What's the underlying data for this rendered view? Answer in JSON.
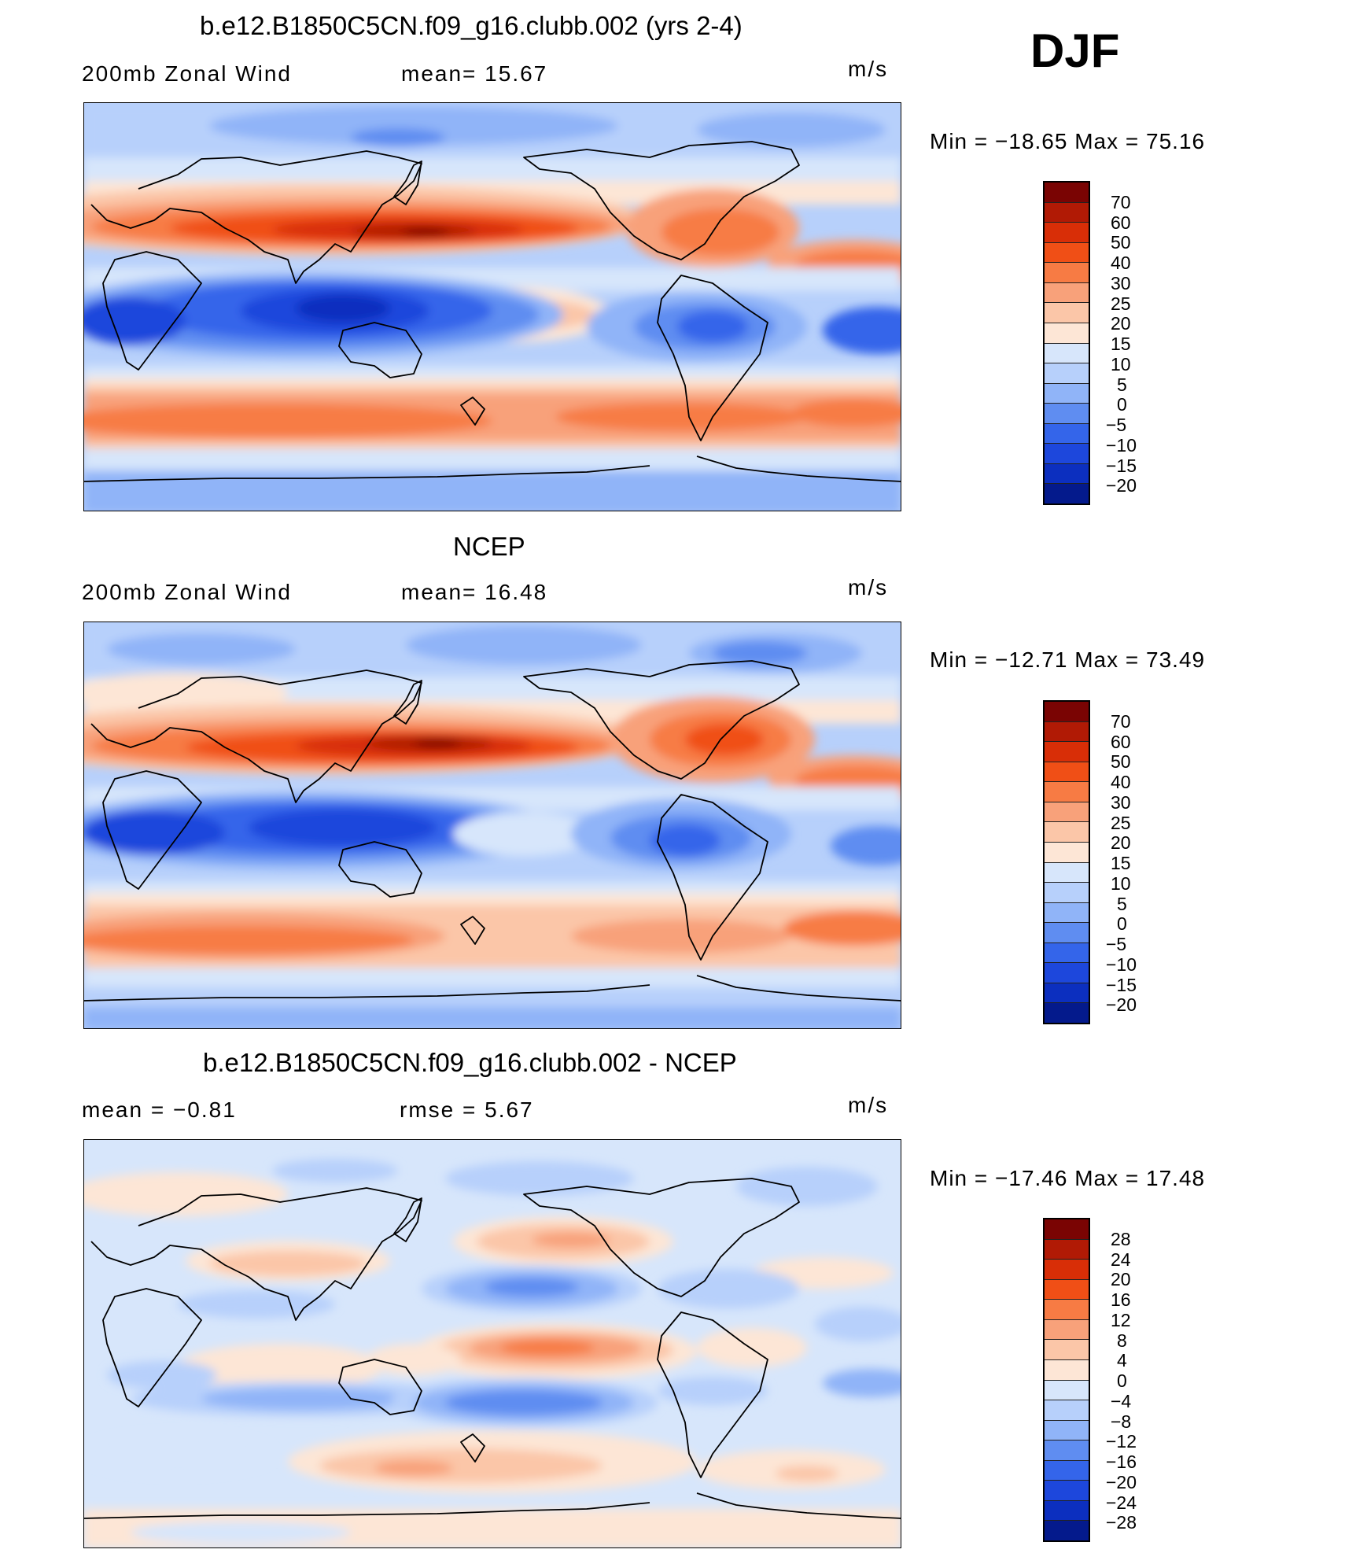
{
  "season": "DJF",
  "units": "m/s",
  "panels": [
    {
      "title": "b.e12.B1850C5CN.f09_g16.clubb.002 (yrs 2-4)",
      "left_label": "200mb Zonal Wind",
      "center_label": "mean=   15.67",
      "right_label": "m/s",
      "minmax": "Min  =  −18.65  Max  =    75.16",
      "colorbar_ticks": [
        "70",
        "60",
        "50",
        "40",
        "30",
        "25",
        "20",
        "15",
        "10",
        "5",
        "0",
        "−5",
        "−10",
        "−15",
        "−20"
      ],
      "colorbar_colors": [
        "#7a0403",
        "#b11a05",
        "#d82e07",
        "#f04f16",
        "#f77b44",
        "#f8a17a",
        "#fbc6a8",
        "#fde6d6",
        "#d7e6fb",
        "#b7d0fb",
        "#90b4f8",
        "#5f8df1",
        "#3465ea",
        "#1d47dc",
        "#0c2fbf",
        "#041a8c"
      ]
    },
    {
      "title": "NCEP",
      "left_label": "200mb Zonal Wind",
      "center_label": "mean=   16.48",
      "right_label": "m/s",
      "minmax": "Min  =  −12.71  Max  =    73.49",
      "colorbar_ticks": [
        "70",
        "60",
        "50",
        "40",
        "30",
        "25",
        "20",
        "15",
        "10",
        "5",
        "0",
        "−5",
        "−10",
        "−15",
        "−20"
      ],
      "colorbar_colors": [
        "#7a0403",
        "#b11a05",
        "#d82e07",
        "#f04f16",
        "#f77b44",
        "#f8a17a",
        "#fbc6a8",
        "#fde6d6",
        "#d7e6fb",
        "#b7d0fb",
        "#90b4f8",
        "#5f8df1",
        "#3465ea",
        "#1d47dc",
        "#0c2fbf",
        "#041a8c"
      ]
    },
    {
      "title": "b.e12.B1850C5CN.f09_g16.clubb.002 - NCEP",
      "left_label": "mean  =    −0.81",
      "center_label": "rmse  =     5.67",
      "right_label": "m/s",
      "minmax": "Min  =  −17.46  Max  =    17.48",
      "colorbar_ticks": [
        "28",
        "24",
        "20",
        "16",
        "12",
        "8",
        "4",
        "0",
        "−4",
        "−8",
        "−12",
        "−16",
        "−20",
        "−24",
        "−28"
      ],
      "colorbar_colors": [
        "#7a0403",
        "#b11a05",
        "#d82e07",
        "#f04f16",
        "#f77b44",
        "#f8a17a",
        "#fbc6a8",
        "#fde6d6",
        "#d7e6fb",
        "#b7d0fb",
        "#90b4f8",
        "#5f8df1",
        "#3465ea",
        "#1d47dc",
        "#0c2fbf",
        "#041a8c"
      ]
    }
  ]
}
